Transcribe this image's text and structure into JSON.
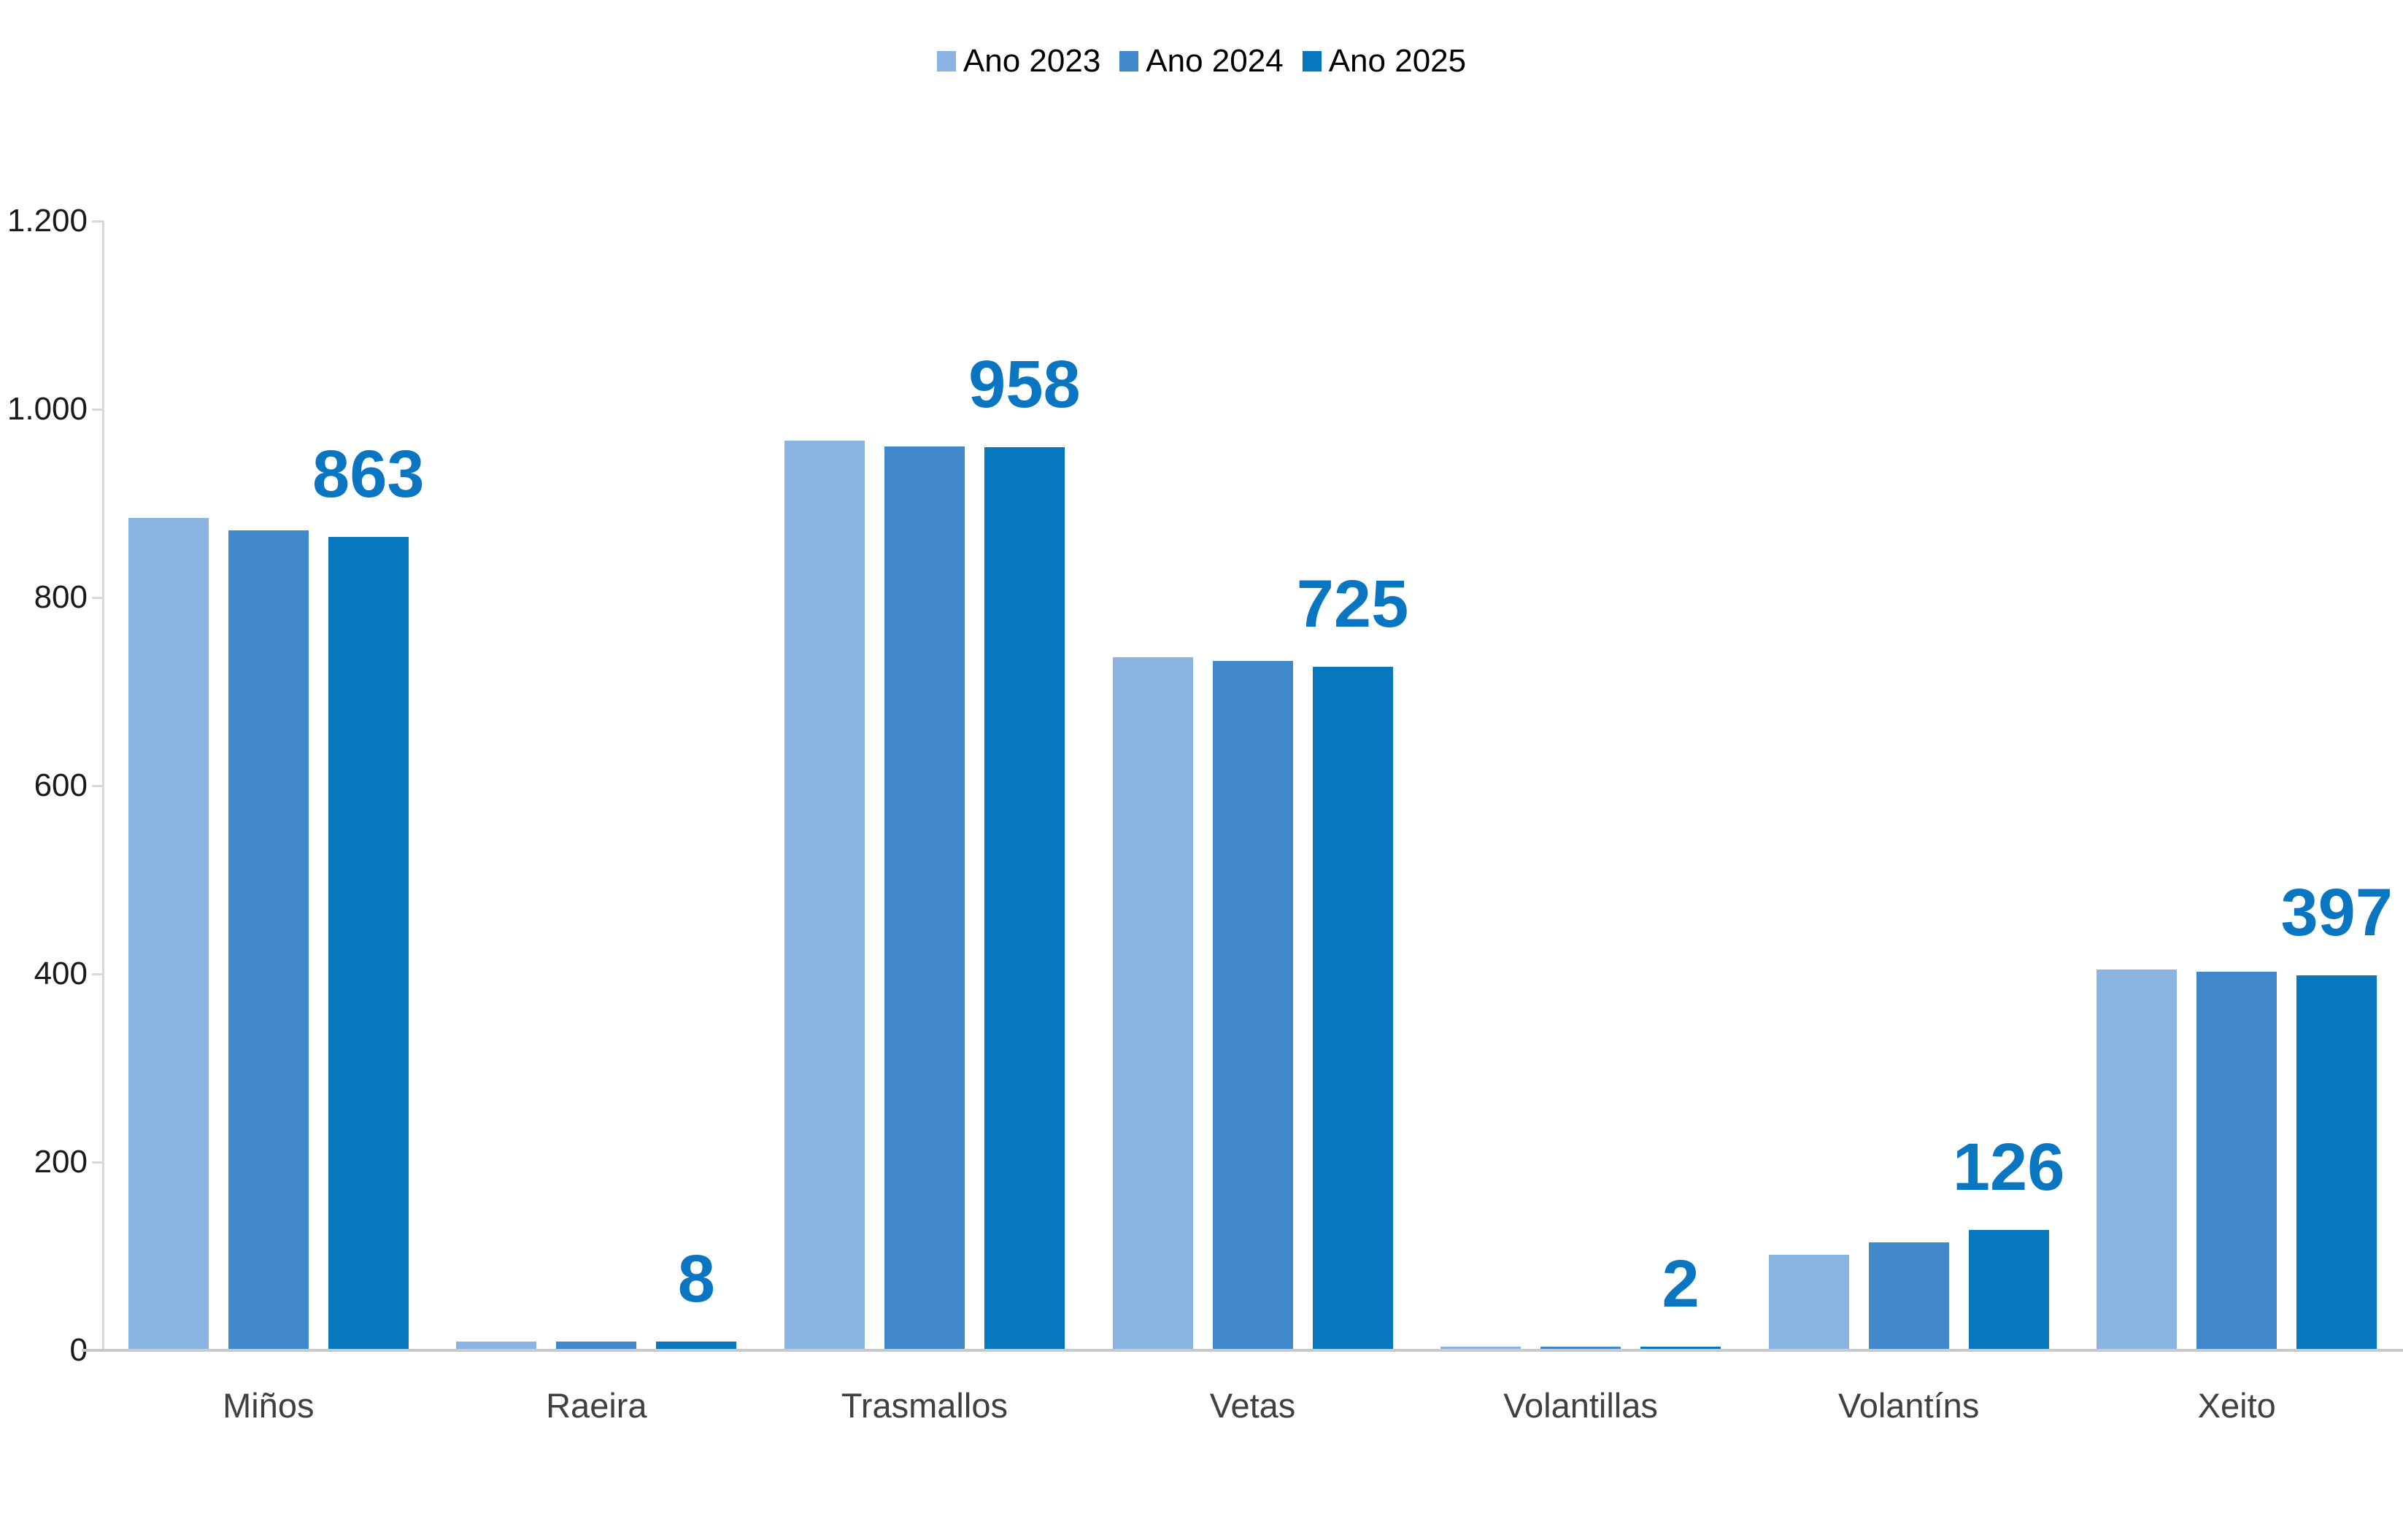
{
  "chart_data": {
    "type": "bar",
    "title": "",
    "xlabel": "",
    "ylabel": "",
    "categories": [
      "Miños",
      "Raeira",
      "Trasmallos",
      "Vetas",
      "Volantillas",
      "Volantíns",
      "Xeito"
    ],
    "series": [
      {
        "name": "Ano 2023",
        "color": "#8ab5e2",
        "values": [
          883,
          8,
          965,
          735,
          2,
          100,
          403
        ],
        "show_data_labels": false
      },
      {
        "name": "Ano 2024",
        "color": "#4189cb",
        "values": [
          870,
          8,
          959,
          731,
          2,
          113,
          401
        ],
        "show_data_labels": false
      },
      {
        "name": "Ano 2025",
        "color": "#0778be",
        "values": [
          863,
          8,
          958,
          725,
          2,
          126,
          397
        ],
        "show_data_labels": true
      }
    ],
    "data_labels": [
      "863",
      "8",
      "958",
      "725",
      "2",
      "126",
      "397"
    ],
    "data_label_color": "#0a76c1",
    "ylim": [
      0,
      1200
    ],
    "y_tick_step": 200,
    "y_tick_labels": [
      "0",
      "200",
      "400",
      "600",
      "800",
      "1.000",
      "1.200"
    ],
    "grid": false,
    "legend_position": "top-center",
    "axis_line_color": "#d9d9d9",
    "baseline_color": "#c9c9c9",
    "category_label_color": "#404040",
    "tick_label_color": "#1a1a1a"
  }
}
